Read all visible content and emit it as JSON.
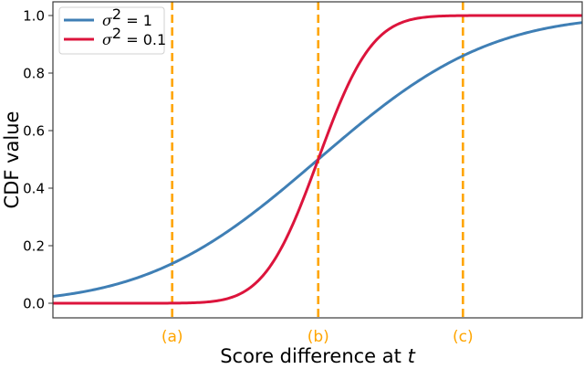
{
  "chart_data": {
    "type": "line",
    "title": "",
    "xlabel": "Score difference at t",
    "xlabel_plain": "Score difference at ",
    "xlabel_italic": "t",
    "ylabel": "CDF value",
    "xlim": [
      -1.98,
      1.97
    ],
    "ylim": [
      -0.05,
      1.05
    ],
    "grid": false,
    "legend_position": "upper left",
    "yticks": [
      0.0,
      0.2,
      0.4,
      0.6,
      0.8,
      1.0
    ],
    "ytick_labels": [
      "0.0",
      "0.2",
      "0.4",
      "0.6",
      "0.8",
      "1.0"
    ],
    "xticks_labels_shown": false,
    "x": [
      -2.0,
      -1.75,
      -1.5,
      -1.25,
      -1.0,
      -0.75,
      -0.5,
      -0.25,
      0.0,
      0.25,
      0.5,
      0.75,
      1.0,
      1.25,
      1.5,
      1.75,
      2.0
    ],
    "series": [
      {
        "name": "σ² = 1",
        "variance": 1,
        "color": "#3f7fb5",
        "values": [
          0.023,
          0.04,
          0.067,
          0.106,
          0.159,
          0.227,
          0.309,
          0.401,
          0.5,
          0.599,
          0.691,
          0.773,
          0.841,
          0.894,
          0.933,
          0.96,
          0.977
        ]
      },
      {
        "name": "σ² = 0.1",
        "variance": 0.1,
        "color": "#dc143c",
        "values": [
          0.0,
          0.0,
          0.0,
          0.0,
          0.001,
          0.009,
          0.057,
          0.215,
          0.5,
          0.785,
          0.943,
          0.991,
          0.999,
          1.0,
          1.0,
          1.0,
          1.0
        ]
      }
    ],
    "vertical_markers": [
      {
        "label": "(a)",
        "x": -1.09,
        "style": "dashed",
        "color": "#ffa500"
      },
      {
        "label": "(b)",
        "x": 0.0,
        "style": "dashed",
        "color": "#ffa500"
      },
      {
        "label": "(c)",
        "x": 1.08,
        "style": "dashed",
        "color": "#ffa500"
      }
    ]
  },
  "legend": {
    "items": [
      {
        "sym": "σ",
        "sup": "2",
        "rest": " = 1",
        "color": "#3f7fb5"
      },
      {
        "sym": "σ",
        "sup": "2",
        "rest": " = 0.1",
        "color": "#dc143c"
      }
    ]
  }
}
